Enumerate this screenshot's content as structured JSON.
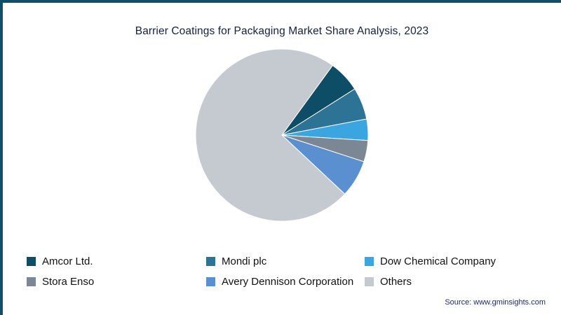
{
  "title": "Barrier Coatings for Packaging Market Share Analysis, 2023",
  "source": "Source: www.gminsights.com",
  "chart_data": {
    "type": "pie",
    "title": "Barrier Coatings for Packaging Market Share Analysis, 2023",
    "labels": [
      "Amcor Ltd.",
      "Mondi plc",
      "Dow Chemical Company",
      "Stora Enso",
      "Avery Dennison Corporation",
      "Others"
    ],
    "values": [
      6,
      6,
      4,
      4,
      7,
      73
    ],
    "colors": [
      "#0d4d66",
      "#2d7396",
      "#3aa5e0",
      "#7b8794",
      "#5a8fd0",
      "#c5cad1"
    ],
    "start_angle_deg": 36,
    "legend_position": "bottom",
    "grid": false,
    "frame_color": "#0d4f66"
  }
}
